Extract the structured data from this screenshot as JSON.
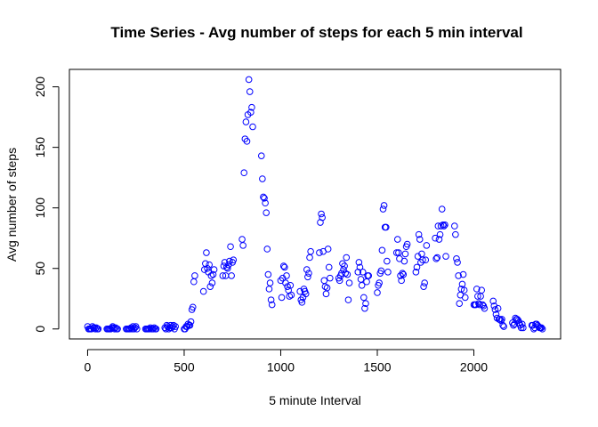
{
  "chart_data": {
    "type": "scatter",
    "title": "Time Series - Avg number of steps for each 5 min interval",
    "x_label": "5 minute Interval",
    "y_label": "Avg number of steps",
    "xlim": [
      -94.2,
      2449.2
    ],
    "ylim": [
      -8.24,
      214.4
    ],
    "xticks": [
      0,
      500,
      1000,
      1500,
      2000
    ],
    "yticks": [
      0,
      50,
      100,
      150,
      200
    ],
    "series": [
      {
        "color": "#0000ff",
        "x": [
          0,
          5,
          10,
          15,
          20,
          25,
          30,
          35,
          40,
          45,
          50,
          55,
          100,
          105,
          110,
          115,
          120,
          125,
          130,
          135,
          140,
          145,
          150,
          155,
          200,
          205,
          210,
          215,
          220,
          225,
          230,
          235,
          240,
          245,
          250,
          255,
          300,
          305,
          310,
          315,
          320,
          325,
          330,
          335,
          340,
          345,
          350,
          355,
          400,
          405,
          410,
          415,
          420,
          425,
          430,
          435,
          440,
          445,
          450,
          455,
          500,
          505,
          510,
          515,
          520,
          525,
          530,
          535,
          540,
          545,
          550,
          555,
          600,
          605,
          610,
          615,
          620,
          625,
          630,
          635,
          640,
          645,
          650,
          655,
          700,
          705,
          710,
          715,
          720,
          725,
          730,
          735,
          740,
          745,
          750,
          755,
          800,
          805,
          810,
          815,
          820,
          825,
          830,
          835,
          840,
          845,
          850,
          855,
          900,
          905,
          910,
          915,
          920,
          925,
          930,
          935,
          940,
          945,
          950,
          955,
          1000,
          1005,
          1010,
          1015,
          1020,
          1025,
          1030,
          1035,
          1040,
          1045,
          1050,
          1055,
          1100,
          1105,
          1110,
          1115,
          1120,
          1125,
          1130,
          1135,
          1140,
          1145,
          1150,
          1155,
          1200,
          1205,
          1210,
          1215,
          1220,
          1225,
          1230,
          1235,
          1240,
          1245,
          1250,
          1255,
          1300,
          1305,
          1310,
          1315,
          1320,
          1325,
          1330,
          1335,
          1340,
          1345,
          1350,
          1355,
          1400,
          1405,
          1410,
          1415,
          1420,
          1425,
          1430,
          1435,
          1440,
          1445,
          1450,
          1455,
          1500,
          1505,
          1510,
          1515,
          1520,
          1525,
          1530,
          1535,
          1540,
          1545,
          1550,
          1555,
          1600,
          1605,
          1610,
          1615,
          1620,
          1625,
          1630,
          1635,
          1640,
          1645,
          1650,
          1655,
          1700,
          1705,
          1710,
          1715,
          1720,
          1725,
          1730,
          1735,
          1740,
          1745,
          1750,
          1755,
          1800,
          1805,
          1810,
          1815,
          1820,
          1825,
          1830,
          1835,
          1840,
          1845,
          1850,
          1855,
          1900,
          1905,
          1910,
          1915,
          1920,
          1925,
          1930,
          1935,
          1940,
          1945,
          1950,
          1955,
          2000,
          2005,
          2010,
          2015,
          2020,
          2025,
          2030,
          2035,
          2040,
          2045,
          2050,
          2055,
          2100,
          2105,
          2110,
          2115,
          2120,
          2125,
          2130,
          2135,
          2140,
          2145,
          2150,
          2155,
          2200,
          2205,
          2210,
          2215,
          2220,
          2225,
          2230,
          2235,
          2240,
          2245,
          2250,
          2255,
          2300,
          2305,
          2310,
          2315,
          2320,
          2325,
          2330,
          2335,
          2340,
          2345,
          2350,
          2355
        ],
        "values": [
          2,
          0,
          0,
          0,
          0,
          2,
          1,
          1,
          0,
          1,
          0,
          0,
          0,
          0,
          0,
          0,
          0,
          1,
          2,
          1,
          0,
          1,
          0,
          0,
          0,
          0,
          0,
          0,
          0,
          1,
          0,
          2,
          0,
          1,
          2,
          0,
          0,
          0,
          0,
          0,
          0,
          1,
          0,
          0,
          0,
          1,
          0,
          0,
          1,
          0,
          3,
          2,
          0,
          1,
          3,
          1,
          2,
          3,
          0,
          2,
          0,
          0,
          2,
          2,
          4,
          3,
          3,
          6,
          16,
          18,
          39,
          44,
          31,
          49,
          54,
          63,
          50,
          47,
          53,
          35,
          44,
          38,
          45,
          49,
          44,
          52,
          55,
          44,
          51,
          50,
          53,
          56,
          68,
          44,
          55,
          57,
          74,
          69,
          129,
          157,
          171,
          155,
          177,
          206,
          196,
          179,
          183,
          167,
          143,
          124,
          109,
          108,
          104,
          96,
          66,
          45,
          33,
          38,
          24,
          20,
          40,
          26,
          42,
          52,
          51,
          38,
          44,
          35,
          32,
          27,
          36,
          28,
          31,
          24,
          22,
          26,
          33,
          31,
          29,
          49,
          43,
          46,
          59,
          64,
          63,
          88,
          95,
          92,
          64,
          40,
          35,
          29,
          34,
          66,
          51,
          42,
          42,
          40,
          44,
          46,
          54,
          49,
          52,
          46,
          59,
          45,
          24,
          38,
          47,
          55,
          51,
          41,
          36,
          47,
          26,
          17,
          21,
          39,
          44,
          44,
          30,
          36,
          38,
          46,
          48,
          65,
          99,
          102,
          84,
          84,
          56,
          47,
          63,
          74,
          63,
          58,
          44,
          40,
          46,
          45,
          56,
          62,
          68,
          70,
          47,
          51,
          60,
          78,
          74,
          55,
          62,
          57,
          35,
          38,
          57,
          69,
          75,
          58,
          59,
          85,
          74,
          78,
          85,
          99,
          86,
          85,
          86,
          60,
          85,
          78,
          58,
          55,
          44,
          21,
          28,
          33,
          37,
          45,
          32,
          26,
          20,
          20,
          20,
          33,
          27,
          21,
          20,
          27,
          32,
          20,
          19,
          17,
          23,
          19,
          16,
          12,
          9,
          17,
          8,
          8,
          7,
          8,
          3,
          2,
          5,
          3,
          4,
          9,
          8,
          8,
          7,
          5,
          3,
          1,
          4,
          1,
          3,
          3,
          0,
          1,
          4,
          4,
          3,
          2,
          1,
          1,
          1,
          0
        ]
      }
    ]
  }
}
